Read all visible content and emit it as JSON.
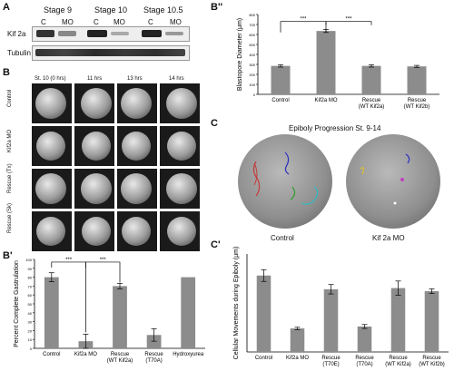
{
  "panels": {
    "A": {
      "letter": "A",
      "stages": [
        "Stage 9",
        "Stage 10",
        "Stage 10.5"
      ],
      "lane_labels": [
        "C",
        "MO",
        "C",
        "MO",
        "C",
        "MO"
      ],
      "rows": [
        "Kif 2a",
        "Tubulin"
      ]
    },
    "B": {
      "letter": "B",
      "time_labels": [
        "St. 10 (0 hrs)",
        "11 hrs",
        "13 hrs",
        "14 hrs"
      ],
      "row_labels": [
        "Control",
        "Kif2a MO",
        "Rescue (Tx)",
        "Rescue (Sk)"
      ]
    },
    "B2": {
      "letter": "B''"
    },
    "B1": {
      "letter": "B'"
    },
    "C": {
      "letter": "C",
      "title": "Epiboly Progression St. 9-14",
      "labels": [
        "Control",
        "Kif 2a MO"
      ]
    },
    "C1": {
      "letter": "C'"
    }
  },
  "chart_data": [
    {
      "id": "B2",
      "type": "bar",
      "ylabel": "Blastopore Diameter (μm)",
      "categories": [
        "Control",
        "Kif2a MO",
        "Rescue\n(WT Kif2a)",
        "Rescue\n(WT Kif2b)"
      ],
      "values": [
        285,
        635,
        285,
        280
      ],
      "errors": [
        12,
        15,
        12,
        10
      ],
      "ylim": [
        0,
        800
      ],
      "yticks": [
        0,
        100,
        200,
        300,
        400,
        500,
        600,
        700,
        800
      ],
      "significance": [
        "***",
        "***"
      ],
      "color": "#8c8c8c"
    },
    {
      "id": "B1",
      "type": "bar",
      "ylabel": "Percent Complete Gastrulation",
      "categories": [
        "Control",
        "Kif2a MO",
        "Rescue\n(WT Kif2a)",
        "Rescue\n(T70A)",
        "Hydroxyurea"
      ],
      "values": [
        80,
        8,
        70,
        15,
        80
      ],
      "errors": [
        5,
        8,
        3,
        7,
        0
      ],
      "ylim": [
        0,
        100
      ],
      "yticks": [
        0,
        10,
        20,
        30,
        40,
        50,
        60,
        70,
        80,
        90,
        100
      ],
      "significance": [
        "***",
        "***"
      ],
      "color": "#8c8c8c"
    },
    {
      "id": "C1",
      "type": "bar",
      "ylabel": "Cellular Movements during Epiboly (μm)",
      "categories": [
        "Control",
        "Kif2a MO",
        "Rescue\n(T70E)",
        "Rescue\n(T70A)",
        "Rescue\n(WT Kif2a)",
        "Rescue\n(WT Kif2b)"
      ],
      "values": [
        195,
        60,
        160,
        65,
        163,
        155
      ],
      "errors": [
        15,
        3,
        12,
        5,
        18,
        6
      ],
      "ylim": [
        0,
        250
      ],
      "color": "#8c8c8c"
    }
  ]
}
